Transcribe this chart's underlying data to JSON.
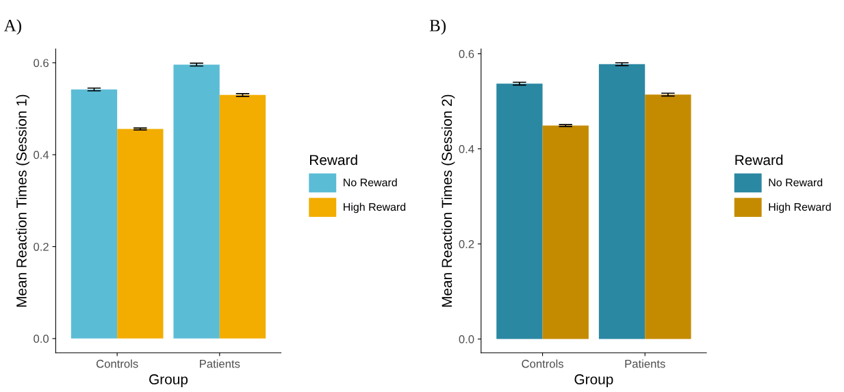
{
  "chart_data": [
    {
      "type": "bar",
      "title": "A)",
      "xlabel": "Group",
      "ylabel": "Mean Reaction Times (Session 1)",
      "legend_title": "Reward",
      "legend": "right",
      "grid": false,
      "categories": [
        "Controls",
        "Patients"
      ],
      "ylim": [
        -0.031,
        0.63
      ],
      "yticks": [
        {
          "value": 0,
          "label": "0.0"
        },
        0.2,
        0.4,
        0.6
      ],
      "series": [
        {
          "name": "No Reward",
          "color": "#5bbcd6",
          "values": [
            0.542,
            0.596
          ],
          "errors": [
            0.003,
            0.003
          ]
        },
        {
          "name": "High Reward",
          "color": "#f2ad00",
          "values": [
            0.456,
            0.53
          ],
          "errors": [
            0.002,
            0.003
          ]
        }
      ]
    },
    {
      "type": "bar",
      "title": "B)",
      "xlabel": "Group",
      "ylabel": "Mean Reaction Times (Session 2)",
      "legend_title": "Reward",
      "legend": "right",
      "grid": false,
      "categories": [
        "Controls",
        "Patients"
      ],
      "ylim": [
        -0.029,
        0.61
      ],
      "yticks": [
        {
          "value": 0,
          "label": "0.0"
        },
        0.2,
        0.4,
        0.6
      ],
      "series": [
        {
          "name": "No Reward",
          "color": "#2b88a3",
          "values": [
            0.537,
            0.578
          ],
          "errors": [
            0.003,
            0.003
          ]
        },
        {
          "name": "High Reward",
          "color": "#c48b00",
          "values": [
            0.449,
            0.514
          ],
          "errors": [
            0.002,
            0.003
          ]
        }
      ]
    }
  ]
}
